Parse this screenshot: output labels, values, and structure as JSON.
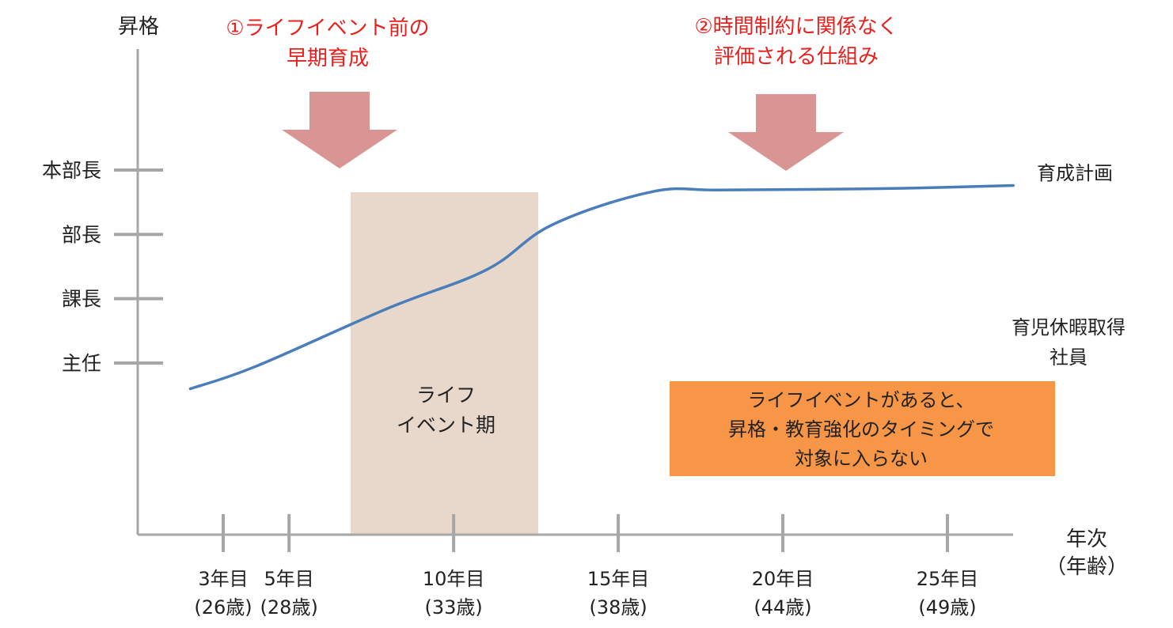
{
  "chart_data": {
    "type": "line",
    "ylabel": "昇格",
    "xlabel": [
      "年次",
      "（年齢）"
    ],
    "x_ticks": [
      {
        "year": 3,
        "line1": "3年目",
        "line2": "(26歳)"
      },
      {
        "year": 5,
        "line1": "5年目",
        "line2": "(28歳)"
      },
      {
        "year": 10,
        "line1": "10年目",
        "line2": "(33歳)"
      },
      {
        "year": 15,
        "line1": "15年目",
        "line2": "(38歳)"
      },
      {
        "year": 20,
        "line1": "20年目",
        "line2": "(44歳)"
      },
      {
        "year": 25,
        "line1": "25年目",
        "line2": "(49歳)"
      }
    ],
    "y_ticks": [
      {
        "level": 1,
        "label": "主任"
      },
      {
        "level": 2,
        "label": "課長"
      },
      {
        "level": 3,
        "label": "部長"
      },
      {
        "level": 4,
        "label": "本部長"
      }
    ],
    "series": [
      {
        "name": "育成計画",
        "color": "#4a7ebb",
        "x": [
          2,
          4,
          8,
          11,
          13,
          16,
          18,
          21,
          24,
          27
        ],
        "y": [
          0.6,
          0.95,
          1.85,
          2.45,
          3.15,
          3.66,
          3.69,
          3.7,
          3.72,
          3.76
        ]
      }
    ],
    "series_note": {
      "lines": [
        "育児休暇取得",
        "社員"
      ]
    },
    "shaded_region": {
      "label_lines": [
        "ライフ",
        "イベント期"
      ],
      "color": "#e8d8cc"
    },
    "annotations": [
      {
        "lines": [
          "①ライフイベント前の",
          "早期育成"
        ],
        "color": "#e8201e"
      },
      {
        "lines": [
          "②時間制約に関係なく",
          "評価される仕組み"
        ],
        "color": "#e8201e"
      }
    ],
    "arrow_color": "#d99494",
    "callout": {
      "lines": [
        "ライフイベントがあると、",
        "昇格・教育強化のタイミングで",
        "対象に入らない"
      ],
      "color": "#f79646"
    },
    "axis_color": "#a6a6a6"
  }
}
